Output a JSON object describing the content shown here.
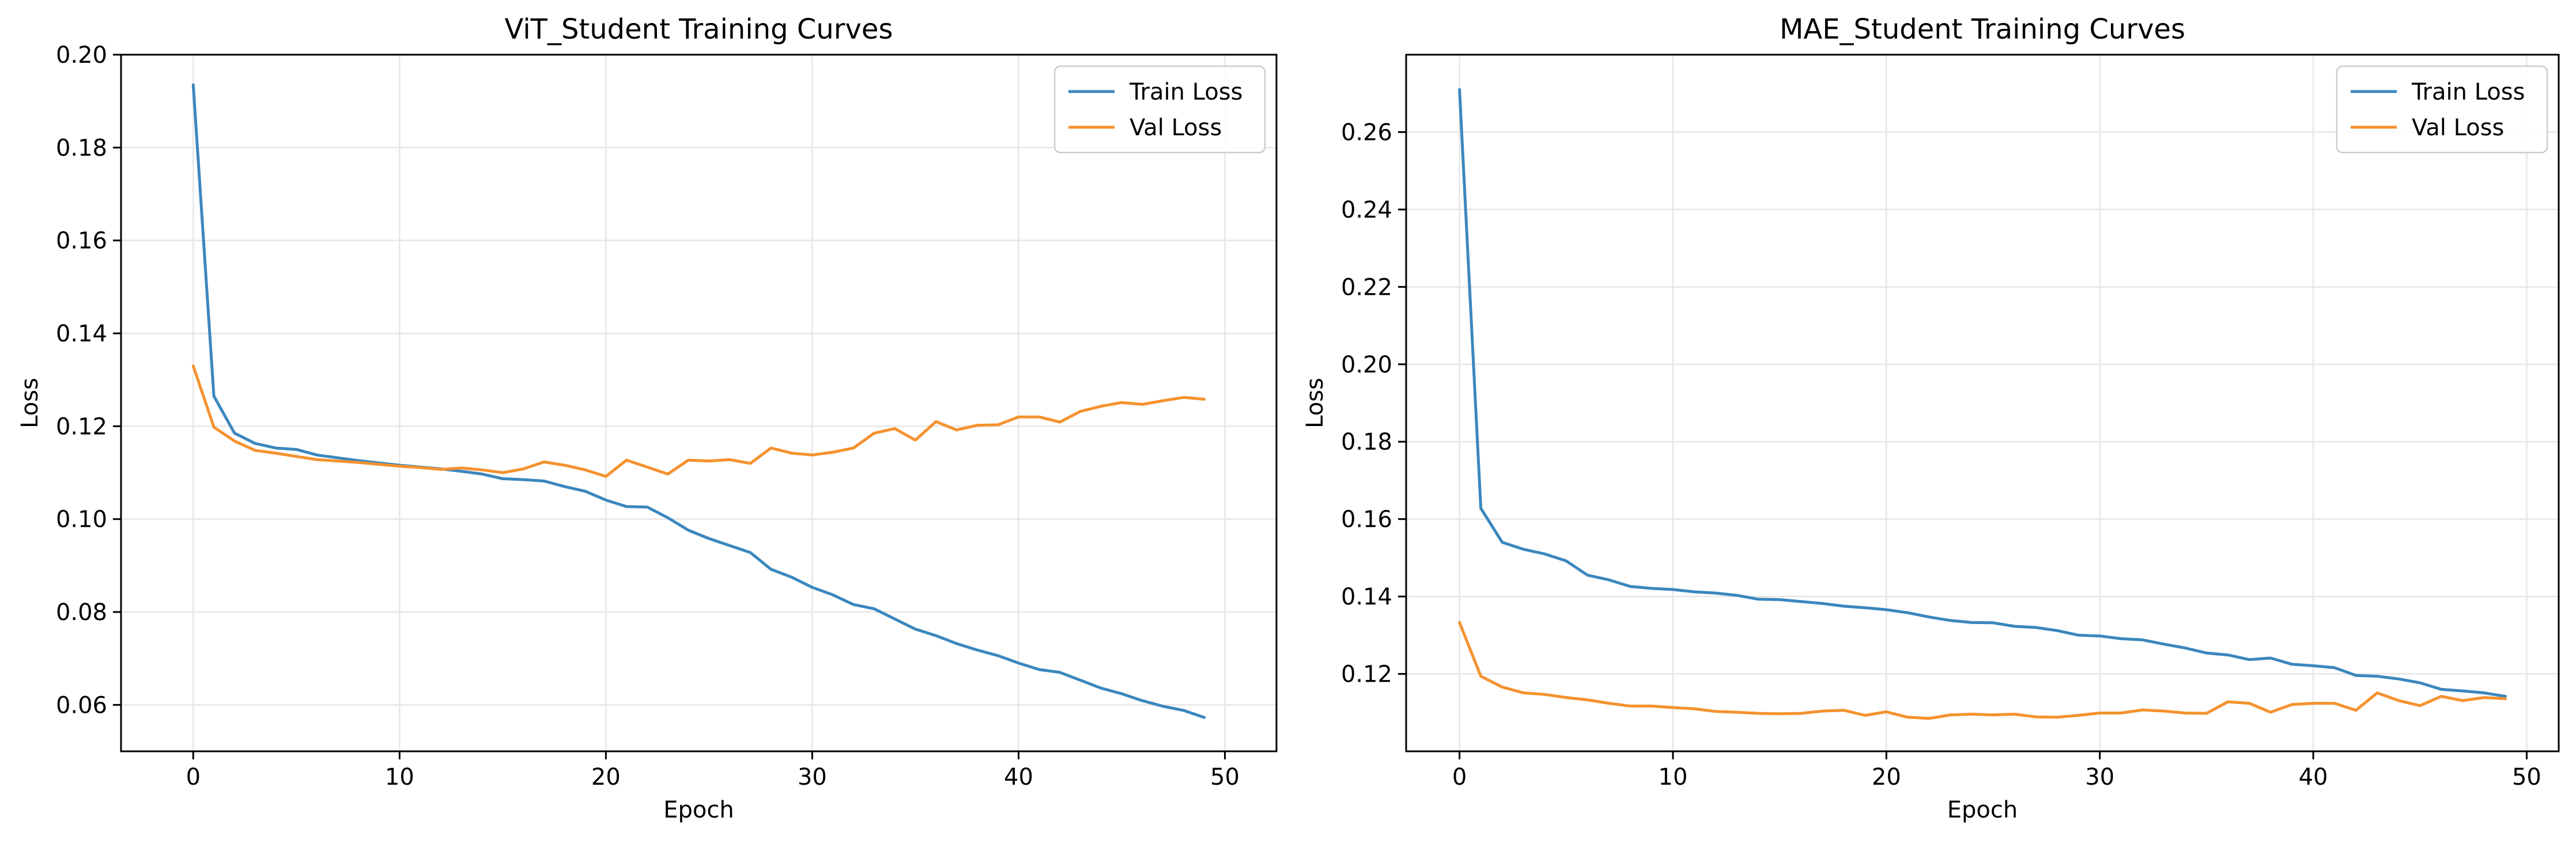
{
  "chart_data": [
    {
      "type": "line",
      "title": "ViT_Student Training Curves",
      "xlabel": "Epoch",
      "ylabel": "Loss",
      "xlim": [
        -3.5,
        52.5
      ],
      "ylim": [
        0.05,
        0.2
      ],
      "xticks": [
        0,
        10,
        20,
        30,
        40,
        50
      ],
      "xtick_labels": [
        "0",
        "10",
        "20",
        "30",
        "40",
        "50"
      ],
      "yticks": [
        0.06,
        0.08,
        0.1,
        0.12,
        0.14,
        0.16,
        0.18,
        0.2
      ],
      "ytick_labels": [
        "0.06",
        "0.08",
        "0.10",
        "0.12",
        "0.14",
        "0.16",
        "0.18",
        "0.20"
      ],
      "grid": true,
      "legend_position": "top-right",
      "series": [
        {
          "name": "Train Loss",
          "color": "#3b87be",
          "values": [
            0.1935,
            0.1265,
            0.1185,
            0.1163,
            0.1153,
            0.115,
            0.1138,
            0.1132,
            0.1126,
            0.1121,
            0.1116,
            0.1112,
            0.1108,
            0.1103,
            0.1097,
            0.1087,
            0.1085,
            0.1082,
            0.107,
            0.106,
            0.1041,
            0.1027,
            0.1026,
            0.1003,
            0.0976,
            0.0958,
            0.0943,
            0.0928,
            0.0892,
            0.0875,
            0.0853,
            0.0837,
            0.0816,
            0.0807,
            0.0785,
            0.0763,
            0.0749,
            0.0732,
            0.0718,
            0.0706,
            0.069,
            0.0676,
            0.067,
            0.0653,
            0.0636,
            0.0624,
            0.0609,
            0.0597,
            0.0588,
            0.0573
          ]
        },
        {
          "name": "Val Loss",
          "color": "#f5922f",
          "values": [
            0.133,
            0.1198,
            0.1168,
            0.1148,
            0.1142,
            0.1135,
            0.1128,
            0.1125,
            0.1122,
            0.1118,
            0.1114,
            0.1111,
            0.1107,
            0.111,
            0.1106,
            0.11,
            0.1108,
            0.1123,
            0.1116,
            0.1106,
            0.1092,
            0.1127,
            0.1112,
            0.1097,
            0.1127,
            0.1125,
            0.1128,
            0.112,
            0.1153,
            0.1142,
            0.1138,
            0.1144,
            0.1153,
            0.1185,
            0.1195,
            0.117,
            0.121,
            0.1192,
            0.1202,
            0.1203,
            0.122,
            0.122,
            0.1209,
            0.1232,
            0.1243,
            0.1251,
            0.1247,
            0.1255,
            0.1262,
            0.1258
          ]
        }
      ]
    },
    {
      "type": "line",
      "title": "MAE_Student Training Curves",
      "xlabel": "Epoch",
      "ylabel": "Loss",
      "xlim": [
        -2.5,
        51.5
      ],
      "ylim": [
        0.1,
        0.28
      ],
      "xticks": [
        0,
        10,
        20,
        30,
        40,
        50
      ],
      "xtick_labels": [
        "0",
        "10",
        "20",
        "30",
        "40",
        "50"
      ],
      "yticks": [
        0.12,
        0.14,
        0.16,
        0.18,
        0.2,
        0.22,
        0.24,
        0.26
      ],
      "ytick_labels": [
        "0.12",
        "0.14",
        "0.16",
        "0.18",
        "0.20",
        "0.22",
        "0.24",
        "0.26"
      ],
      "grid": true,
      "legend_position": "top-right",
      "series": [
        {
          "name": "Train Loss",
          "color": "#3b87be",
          "values": [
            0.271,
            0.1628,
            0.154,
            0.1522,
            0.151,
            0.1492,
            0.1455,
            0.1443,
            0.1426,
            0.1421,
            0.1418,
            0.1412,
            0.1409,
            0.1403,
            0.1393,
            0.1392,
            0.1387,
            0.1382,
            0.1375,
            0.1371,
            0.1366,
            0.1358,
            0.1347,
            0.1338,
            0.1333,
            0.1332,
            0.1323,
            0.132,
            0.1312,
            0.13,
            0.1298,
            0.1291,
            0.1288,
            0.1277,
            0.1267,
            0.1254,
            0.1249,
            0.1237,
            0.1241,
            0.1225,
            0.1221,
            0.1216,
            0.1196,
            0.1194,
            0.1187,
            0.1177,
            0.116,
            0.1156,
            0.1151,
            0.1142
          ]
        },
        {
          "name": "Val Loss",
          "color": "#f5922f",
          "values": [
            0.1333,
            0.1194,
            0.1166,
            0.1151,
            0.1147,
            0.1139,
            0.1133,
            0.1124,
            0.1117,
            0.1117,
            0.1113,
            0.111,
            0.1103,
            0.1101,
            0.1098,
            0.1097,
            0.1098,
            0.1104,
            0.1106,
            0.1093,
            0.1102,
            0.1088,
            0.1085,
            0.1094,
            0.1096,
            0.1094,
            0.1096,
            0.1089,
            0.1088,
            0.1093,
            0.1099,
            0.1099,
            0.1107,
            0.1104,
            0.1099,
            0.1098,
            0.1128,
            0.1124,
            0.1101,
            0.1121,
            0.1124,
            0.1124,
            0.1106,
            0.1151,
            0.1131,
            0.1118,
            0.1142,
            0.1131,
            0.1139,
            0.1136
          ]
        }
      ]
    }
  ]
}
